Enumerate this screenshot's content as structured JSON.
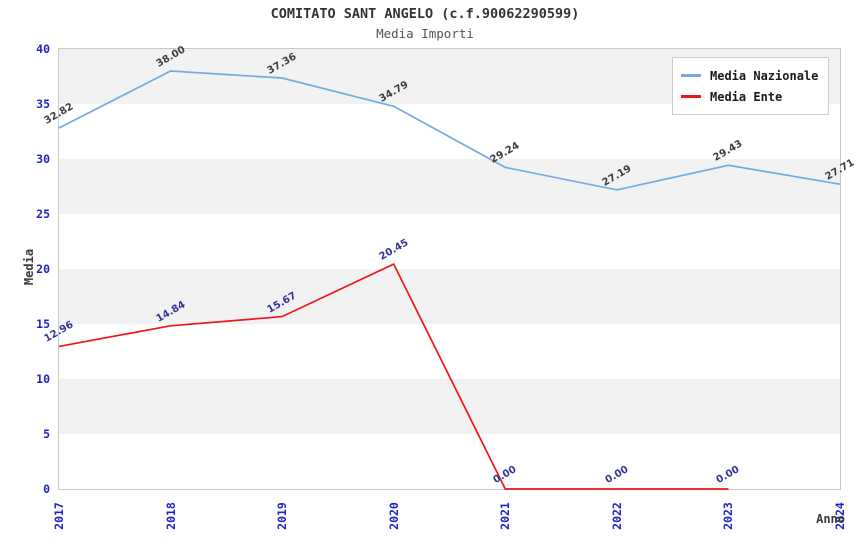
{
  "title": "COMITATO SANT ANGELO (c.f.90062290599)",
  "subtitle": "Media Importi",
  "axes": {
    "y_label": "Media",
    "x_label": "Anno",
    "y_ticks": [
      0,
      5,
      10,
      15,
      20,
      25,
      30,
      35,
      40
    ]
  },
  "legend": {
    "position": "top-right",
    "items": [
      {
        "name": "Media Nazionale",
        "color": "#74aae3"
      },
      {
        "name": "Media Ente",
        "color": "#ee1616"
      }
    ]
  },
  "colors": {
    "tick_label": "#2222cc",
    "plot_border": "#c9c9c9",
    "band_gray": "#f2f2f2",
    "band_white": "#ffffff",
    "title_text": "#333333",
    "subtitle_text": "#555555"
  },
  "chart_data": {
    "type": "line",
    "title": "COMITATO SANT ANGELO (c.f.90062290599)",
    "subtitle": "Media Importi",
    "xlabel": "Anno",
    "ylabel": "Media",
    "x": [
      2017,
      2018,
      2019,
      2020,
      2021,
      2022,
      2023,
      2024
    ],
    "ylim": [
      0,
      40
    ],
    "grid": "horizontal-bands",
    "legend_position": "top-right",
    "series": [
      {
        "name": "Media Nazionale",
        "color": "#74aae3",
        "label_color": "#3d3d3d",
        "values": [
          32.82,
          38.0,
          37.36,
          34.79,
          29.24,
          27.19,
          29.43,
          27.71
        ]
      },
      {
        "name": "Media Ente",
        "color": "#ee1616",
        "label_color": "#333399",
        "values": [
          12.96,
          14.84,
          15.67,
          20.45,
          0.0,
          0.0,
          0.0,
          null
        ]
      }
    ]
  }
}
